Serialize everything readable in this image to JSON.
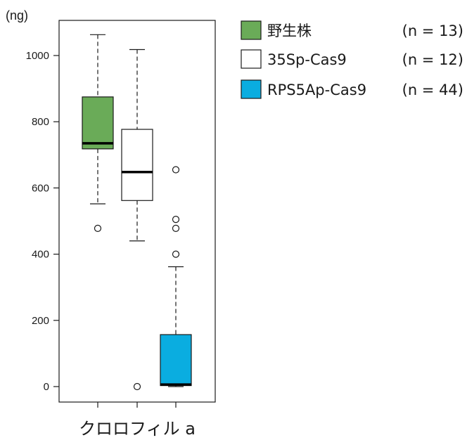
{
  "chart_data": {
    "type": "box",
    "ylabel": "(ng)",
    "xlabel": "クロロフィル a",
    "ylim": [
      -40,
      1110
    ],
    "yticks": [
      0,
      200,
      400,
      600,
      800,
      1000
    ],
    "grid": false,
    "legend_position": "top-right, outside plot",
    "series": [
      {
        "name": "野生株",
        "n_label": "(n = 13)",
        "color": "#6aab58",
        "whisker_low": 552,
        "q1": 718,
        "median": 735,
        "q3": 875,
        "whisker_high": 1063,
        "outliers": [
          478
        ]
      },
      {
        "name": "35Sp-Cas9",
        "n_label": "(n = 12)",
        "color": "#ffffff",
        "whisker_low": 440,
        "q1": 562,
        "median": 648,
        "q3": 777,
        "whisker_high": 1018,
        "outliers": [
          0
        ]
      },
      {
        "name": "RPS5Ap-Cas9",
        "n_label": "(n = 44)",
        "color": "#0aade0",
        "whisker_low": 0,
        "q1": 3,
        "median": 6,
        "q3": 157,
        "whisker_high": 362,
        "outliers": [
          655,
          505,
          478,
          400
        ]
      }
    ]
  }
}
